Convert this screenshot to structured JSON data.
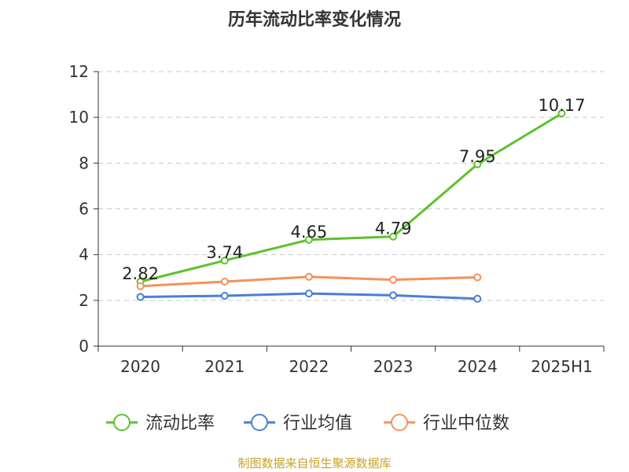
{
  "chart_data": {
    "type": "line",
    "title": "历年流动比率变化情况",
    "categories": [
      "2020",
      "2021",
      "2022",
      "2023",
      "2024",
      "2025H1"
    ],
    "ylim": [
      0,
      12
    ],
    "yticks": [
      "0",
      "2",
      "4",
      "6",
      "8",
      "10",
      "12"
    ],
    "grid": true,
    "legend_position": "bottom",
    "series": [
      {
        "name": "流动比率",
        "color": "#5cc22e",
        "values": [
          2.82,
          3.74,
          4.65,
          4.79,
          7.95,
          10.17
        ],
        "labels": [
          "2.82",
          "3.74",
          "4.65",
          "4.79",
          "7.95",
          "10.17"
        ]
      },
      {
        "name": "行业均值",
        "color": "#4b7fd6",
        "values": [
          2.15,
          2.2,
          2.3,
          2.22,
          2.07,
          null
        ]
      },
      {
        "name": "行业中位数",
        "color": "#f5915c",
        "values": [
          2.62,
          2.82,
          3.03,
          2.9,
          3.01,
          null
        ]
      }
    ]
  },
  "footer": {
    "source": "制图数据来自恒生聚源数据库",
    "source_color": "#c9a227"
  }
}
